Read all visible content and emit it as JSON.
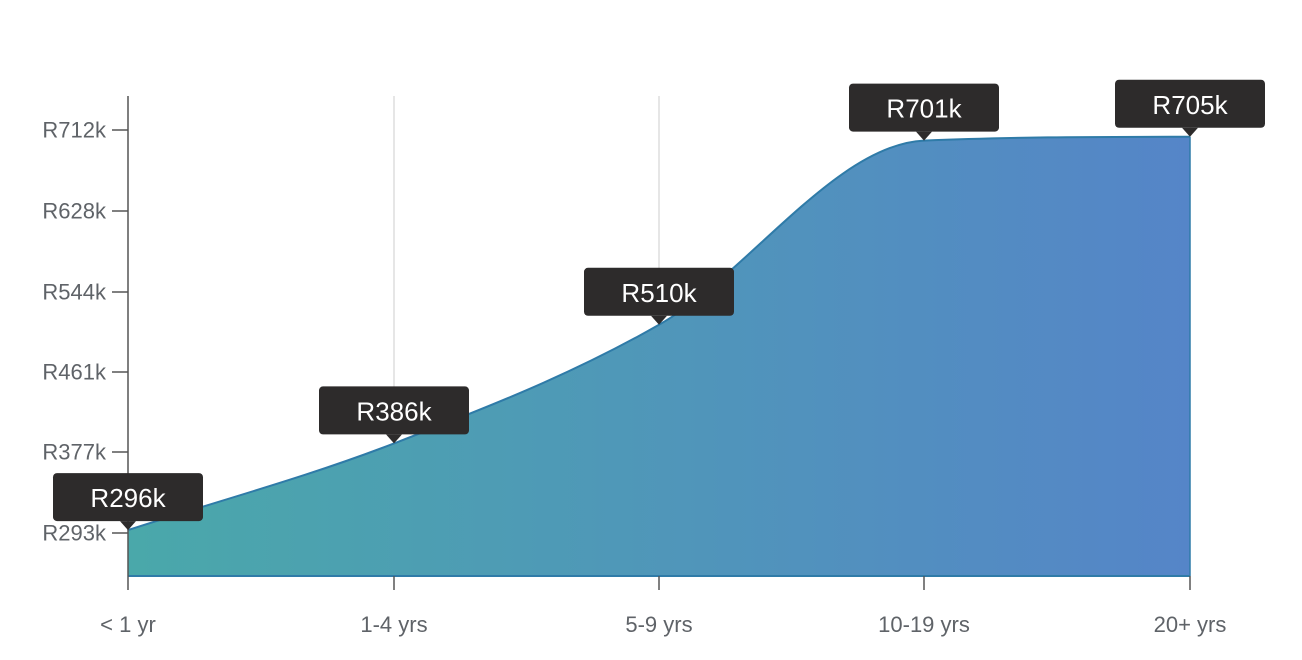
{
  "chart_data": {
    "type": "area",
    "categories": [
      "< 1 yr",
      "1-4 yrs",
      "5-9 yrs",
      "10-19 yrs",
      "20+ yrs"
    ],
    "values": [
      296,
      386,
      510,
      701,
      705
    ],
    "value_labels": [
      "R296k",
      "R386k",
      "R510k",
      "R701k",
      "R705k"
    ],
    "y_ticks": [
      293,
      377,
      461,
      544,
      628,
      712
    ],
    "y_tick_labels": [
      "R293k",
      "R377k",
      "R461k",
      "R544k",
      "R628k",
      "R712k"
    ],
    "ylim": [
      248,
      748
    ],
    "vertical_grid": true,
    "colors": {
      "gradient_start": "#4aa8aa",
      "gradient_end": "#5585c8",
      "line": "#2f7ba8",
      "tooltip": "#2d2b2b",
      "grid": "#cccccc",
      "axis": "#555555"
    }
  }
}
